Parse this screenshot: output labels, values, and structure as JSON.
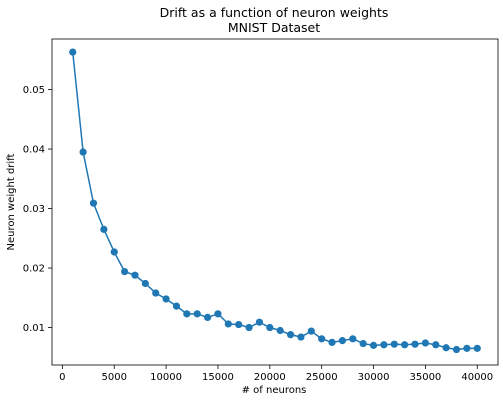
{
  "chart_data": {
    "type": "line",
    "title": "Drift as a function of neuron weights",
    "subtitle": "MNIST Dataset",
    "xlabel": "# of neurons",
    "ylabel": "Neuron weight drift",
    "xlim": [
      -1000,
      42000
    ],
    "ylim": [
      0.0037,
      0.0585
    ],
    "xticks": [
      0,
      5000,
      10000,
      15000,
      20000,
      25000,
      30000,
      35000,
      40000
    ],
    "xtick_labels": [
      "0",
      "5000",
      "10000",
      "15000",
      "20000",
      "25000",
      "30000",
      "35000",
      "40000"
    ],
    "yticks": [
      0.01,
      0.02,
      0.03,
      0.04,
      0.05
    ],
    "ytick_labels": [
      "0.01",
      "0.02",
      "0.03",
      "0.04",
      "0.05"
    ],
    "grid": false,
    "marker": "circle",
    "color": "#1f77b4",
    "series": [
      {
        "x": [
          1000,
          2000,
          3000,
          4000,
          5000,
          6000,
          7000,
          8000,
          9000,
          10000,
          11000,
          12000,
          13000,
          14000,
          15000,
          16000,
          17000,
          18000,
          19000,
          20000,
          21000,
          22000,
          23000,
          24000,
          25000,
          26000,
          27000,
          28000,
          29000,
          30000,
          31000,
          32000,
          33000,
          34000,
          35000,
          36000,
          37000,
          38000,
          39000,
          40000
        ],
        "y": [
          0.0563,
          0.0395,
          0.0309,
          0.0265,
          0.0227,
          0.0194,
          0.0188,
          0.0174,
          0.0158,
          0.0148,
          0.0136,
          0.0123,
          0.0123,
          0.0117,
          0.0123,
          0.0106,
          0.0105,
          0.01,
          0.0109,
          0.01,
          0.0095,
          0.0088,
          0.0084,
          0.0094,
          0.0081,
          0.0075,
          0.0078,
          0.0081,
          0.0073,
          0.007,
          0.0071,
          0.0072,
          0.0071,
          0.0072,
          0.0074,
          0.0071,
          0.0066,
          0.0063,
          0.0065,
          0.0065
        ]
      }
    ]
  }
}
